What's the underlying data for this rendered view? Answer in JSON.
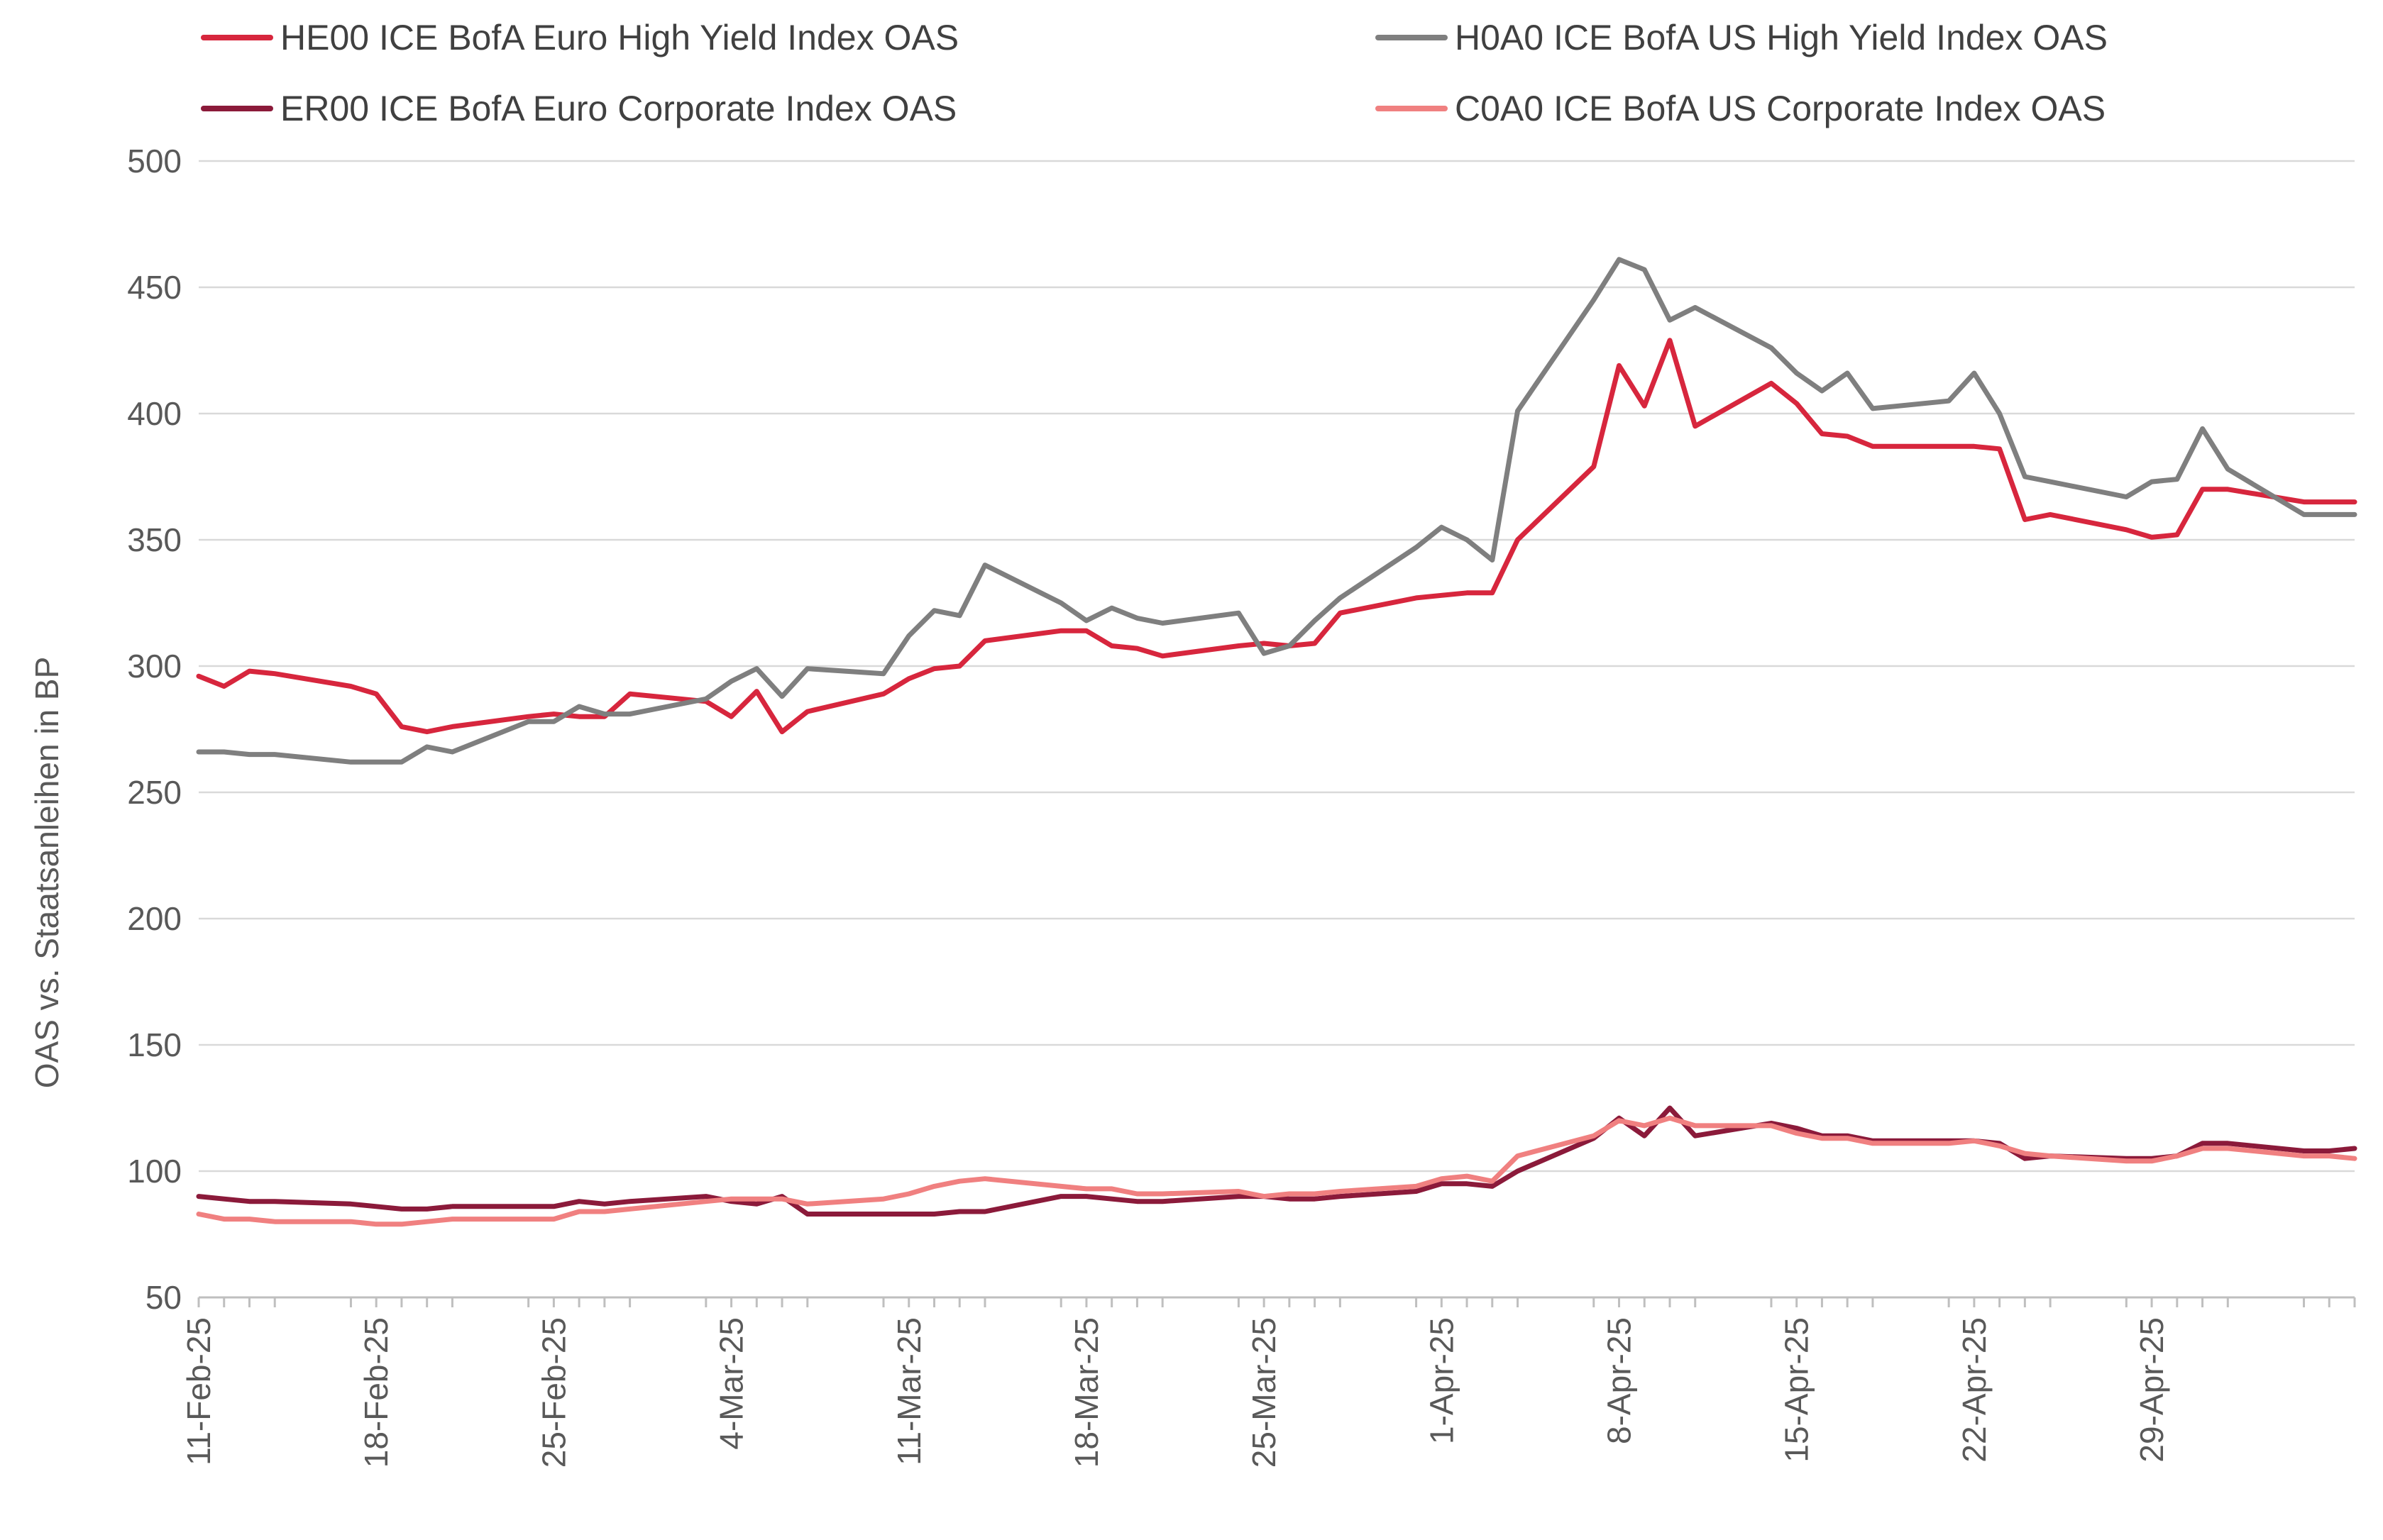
{
  "chart_data": {
    "type": "line",
    "title": "",
    "xlabel": "",
    "ylabel": "OAS vs. Staatsanleihen in BP",
    "ylim": [
      50,
      500
    ],
    "yticks": [
      50,
      100,
      150,
      200,
      250,
      300,
      350,
      400,
      450,
      500
    ],
    "xlim": [
      "2025-02-11",
      "2025-05-07"
    ],
    "xtick_dates": [
      "2025-02-11",
      "2025-02-18",
      "2025-02-25",
      "2025-03-04",
      "2025-03-11",
      "2025-03-18",
      "2025-03-25",
      "2025-04-01",
      "2025-04-08",
      "2025-04-15",
      "2025-04-22",
      "2025-04-29"
    ],
    "xtick_labels": [
      "11-Feb-25",
      "18-Feb-25",
      "25-Feb-25",
      "4-Mar-25",
      "11-Mar-25",
      "18-Mar-25",
      "25-Mar-25",
      "1-Apr-25",
      "8-Apr-25",
      "15-Apr-25",
      "22-Apr-25",
      "29-Apr-25"
    ],
    "grid": true,
    "legend_position": "top",
    "x": [
      "2025-02-11",
      "2025-02-12",
      "2025-02-13",
      "2025-02-14",
      "2025-02-17",
      "2025-02-18",
      "2025-02-19",
      "2025-02-20",
      "2025-02-21",
      "2025-02-24",
      "2025-02-25",
      "2025-02-26",
      "2025-02-27",
      "2025-02-28",
      "2025-03-03",
      "2025-03-04",
      "2025-03-05",
      "2025-03-06",
      "2025-03-07",
      "2025-03-10",
      "2025-03-11",
      "2025-03-12",
      "2025-03-13",
      "2025-03-14",
      "2025-03-17",
      "2025-03-18",
      "2025-03-19",
      "2025-03-20",
      "2025-03-21",
      "2025-03-24",
      "2025-03-25",
      "2025-03-26",
      "2025-03-27",
      "2025-03-28",
      "2025-03-31",
      "2025-04-01",
      "2025-04-02",
      "2025-04-03",
      "2025-04-04",
      "2025-04-07",
      "2025-04-08",
      "2025-04-09",
      "2025-04-10",
      "2025-04-11",
      "2025-04-14",
      "2025-04-15",
      "2025-04-16",
      "2025-04-17",
      "2025-04-18",
      "2025-04-21",
      "2025-04-22",
      "2025-04-23",
      "2025-04-24",
      "2025-04-25",
      "2025-04-28",
      "2025-04-29",
      "2025-04-30",
      "2025-05-01",
      "2025-05-02",
      "2025-05-05",
      "2025-05-06",
      "2025-05-07"
    ],
    "series": [
      {
        "name": "HE00 ICE BofA Euro High Yield Index OAS",
        "color": "#d7263d",
        "values": [
          296,
          292,
          298,
          297,
          292,
          289,
          276,
          274,
          276,
          280,
          281,
          280,
          280,
          289,
          286,
          280,
          290,
          274,
          282,
          289,
          295,
          299,
          300,
          310,
          314,
          314,
          308,
          307,
          304,
          308,
          309,
          308,
          309,
          321,
          327,
          328,
          329,
          329,
          350,
          379,
          419,
          403,
          429,
          395,
          412,
          404,
          392,
          391,
          387,
          387,
          387,
          386,
          358,
          360,
          354,
          351,
          352,
          370,
          370,
          365,
          365,
          365
        ]
      },
      {
        "name": "H0A0 ICE BofA US High Yield Index OAS",
        "color": "#7f7f7f",
        "values": [
          266,
          266,
          265,
          265,
          262,
          262,
          262,
          268,
          266,
          278,
          278,
          284,
          281,
          281,
          287,
          294,
          299,
          288,
          299,
          297,
          312,
          322,
          320,
          340,
          325,
          318,
          323,
          319,
          317,
          321,
          305,
          308,
          318,
          327,
          347,
          355,
          350,
          342,
          401,
          445,
          461,
          457,
          437,
          442,
          426,
          416,
          409,
          416,
          402,
          405,
          416,
          400,
          375,
          373,
          367,
          373,
          374,
          394,
          378,
          360,
          360,
          360
        ]
      },
      {
        "name": "ER00 ICE BofA Euro Corporate Index OAS",
        "color": "#8b1a3a",
        "values": [
          90,
          89,
          88,
          88,
          87,
          86,
          85,
          85,
          86,
          86,
          86,
          88,
          87,
          88,
          90,
          88,
          87,
          90,
          83,
          83,
          83,
          83,
          84,
          84,
          90,
          90,
          89,
          88,
          88,
          90,
          90,
          89,
          89,
          90,
          92,
          95,
          95,
          94,
          100,
          113,
          121,
          114,
          125,
          114,
          119,
          117,
          114,
          114,
          112,
          112,
          112,
          111,
          105,
          106,
          105,
          105,
          106,
          111,
          111,
          108,
          108,
          109
        ]
      },
      {
        "name": "C0A0 ICE BofA US Corporate Index OAS",
        "color": "#f08080",
        "values": [
          83,
          81,
          81,
          80,
          80,
          79,
          79,
          80,
          81,
          81,
          81,
          84,
          84,
          85,
          88,
          89,
          89,
          89,
          87,
          89,
          91,
          94,
          96,
          97,
          94,
          93,
          93,
          91,
          91,
          92,
          90,
          91,
          91,
          92,
          94,
          97,
          98,
          96,
          106,
          114,
          120,
          118,
          121,
          118,
          118,
          115,
          113,
          113,
          111,
          111,
          112,
          110,
          107,
          106,
          104,
          104,
          106,
          109,
          109,
          106,
          106,
          105
        ]
      }
    ]
  }
}
